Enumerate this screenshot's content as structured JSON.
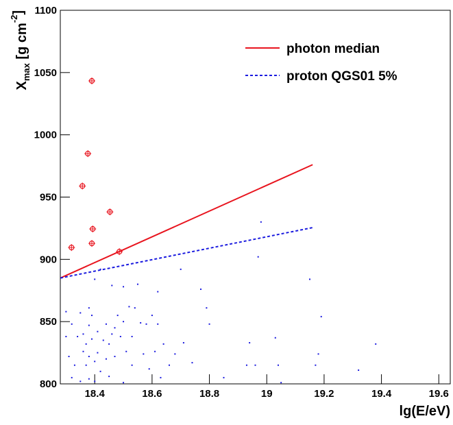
{
  "chart_data": {
    "type": "scatter",
    "xlabel": "lg(E/eV)",
    "ylabel_parts": [
      "X",
      "max",
      " [g cm",
      "-2",
      "]"
    ],
    "xlim": [
      18.28,
      19.64
    ],
    "ylim": [
      800,
      1100
    ],
    "xticks": [
      18.4,
      18.6,
      18.8,
      19,
      19.2,
      19.4,
      19.6
    ],
    "yticks": [
      800,
      850,
      900,
      950,
      1000,
      1050,
      1100
    ],
    "legend": "top-right",
    "lines": [
      {
        "name": "photon median",
        "color": "#e8141e",
        "dash": false,
        "x": [
          18.28,
          19.16
        ],
        "y": [
          885,
          976
        ]
      },
      {
        "name": "proton QGS01 5%",
        "color": "#1a1adf",
        "dash": true,
        "x": [
          18.28,
          19.16
        ],
        "y": [
          885,
          925.5
        ]
      }
    ],
    "points": [
      {
        "color": "#e8141e",
        "marker": "circle-cross",
        "x": [
          18.319,
          18.357,
          18.376,
          18.39,
          18.453,
          18.393,
          18.39,
          18.486
        ],
        "y": [
          909.5,
          958.9,
          984.9,
          1043.3,
          938.1,
          924.4,
          912.8,
          906.2
        ]
      },
      {
        "color": "#1a1adf",
        "marker": "dot",
        "x": [
          18.3,
          18.3,
          18.31,
          18.32,
          18.32,
          18.33,
          18.34,
          18.35,
          18.35,
          18.36,
          18.36,
          18.37,
          18.37,
          18.38,
          18.38,
          18.38,
          18.38,
          18.39,
          18.39,
          18.4,
          18.4,
          18.4,
          18.41,
          18.41,
          18.42,
          18.42,
          18.43,
          18.44,
          18.44,
          18.45,
          18.45,
          18.46,
          18.46,
          18.47,
          18.47,
          18.48,
          18.49,
          18.5,
          18.5,
          18.5,
          18.51,
          18.52,
          18.53,
          18.53,
          18.54,
          18.55,
          18.56,
          18.57,
          18.58,
          18.59,
          18.6,
          18.61,
          18.62,
          18.62,
          18.63,
          18.64,
          18.66,
          18.68,
          18.7,
          18.71,
          18.74,
          18.77,
          18.79,
          18.8,
          18.85,
          18.93,
          18.94,
          18.96,
          18.97,
          18.98,
          19.03,
          19.04,
          19.05,
          19.15,
          19.17,
          19.18,
          19.19,
          19.32,
          19.38
        ],
        "y": [
          838,
          858,
          822,
          848,
          805,
          815,
          838,
          802,
          857,
          840,
          826,
          832,
          815,
          861,
          847,
          822,
          804,
          855,
          836,
          884,
          818,
          802,
          842,
          825,
          892,
          810,
          835,
          848,
          820,
          832,
          806,
          879,
          840,
          845,
          822,
          855,
          838,
          878,
          850,
          801,
          826,
          862,
          815,
          838,
          861,
          880,
          849,
          824,
          848,
          812,
          855,
          826,
          874,
          848,
          805,
          832,
          815,
          824,
          892,
          833,
          817,
          876,
          861,
          848,
          805,
          815,
          833,
          815,
          902,
          930,
          837,
          815,
          801,
          884,
          815,
          824,
          854,
          811,
          832
        ]
      }
    ]
  }
}
